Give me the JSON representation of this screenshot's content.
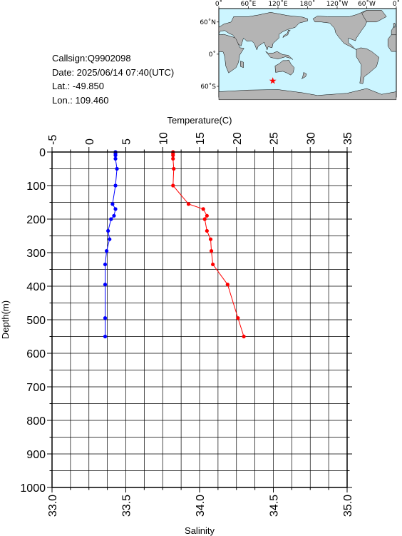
{
  "info": {
    "callsign": "Callsign:Q9902098",
    "date": "Date:  2025/06/14 07:40(UTC)",
    "lat": "Lat.:  -49.850",
    "lon": "Lon.:  109.460"
  },
  "map": {
    "lon_labels": [
      "0˚",
      "60˚E",
      "120˚E",
      "180˚",
      "120˚W",
      "60˚W",
      "0˚"
    ],
    "lat_labels": [
      "60˚N",
      "0˚",
      "60˚S"
    ],
    "ocean_color": "#ccf5ff",
    "land_color": "#b4b4b4",
    "marker": {
      "symbol": "★",
      "lat": -49.85,
      "lon": 109.46,
      "color": "#ff0000"
    }
  },
  "chart_data": {
    "type": "line",
    "y_axis": {
      "label": "Depth(m)",
      "range": [
        0,
        1000
      ],
      "ticks": [
        0,
        100,
        200,
        300,
        400,
        500,
        600,
        700,
        800,
        900,
        1000
      ]
    },
    "top_axis": {
      "label": "Temperature(C)",
      "range": [
        -5,
        35
      ],
      "ticks": [
        -5,
        0,
        5,
        10,
        15,
        20,
        25,
        30,
        35
      ]
    },
    "bottom_axis": {
      "label": "Salinity",
      "range": [
        33.0,
        35.0
      ],
      "ticks": [
        "33.0",
        "33.5",
        "34.0",
        "34.5",
        "35.0"
      ]
    },
    "grid": true,
    "series": [
      {
        "axis": "top",
        "color": "#ff0000",
        "points": [
          [
            11.4,
            0
          ],
          [
            11.4,
            5
          ],
          [
            11.4,
            10
          ],
          [
            11.4,
            20
          ],
          [
            11.5,
            50
          ],
          [
            11.4,
            100
          ],
          [
            13.5,
            155
          ],
          [
            15.5,
            170
          ],
          [
            16.0,
            190
          ],
          [
            15.7,
            200
          ],
          [
            16.0,
            235
          ],
          [
            16.5,
            260
          ],
          [
            16.6,
            295
          ],
          [
            16.8,
            335
          ],
          [
            18.8,
            395
          ],
          [
            20.2,
            495
          ],
          [
            21.0,
            550
          ]
        ]
      },
      {
        "axis": "bottom",
        "color": "#0000ff",
        "points": [
          [
            33.43,
            0
          ],
          [
            33.43,
            5
          ],
          [
            33.43,
            10
          ],
          [
            33.43,
            20
          ],
          [
            33.44,
            50
          ],
          [
            33.43,
            100
          ],
          [
            33.41,
            155
          ],
          [
            33.43,
            170
          ],
          [
            33.42,
            190
          ],
          [
            33.4,
            200
          ],
          [
            33.38,
            235
          ],
          [
            33.39,
            260
          ],
          [
            33.37,
            295
          ],
          [
            33.36,
            335
          ],
          [
            33.36,
            395
          ],
          [
            33.36,
            495
          ],
          [
            33.36,
            550
          ]
        ]
      }
    ]
  }
}
